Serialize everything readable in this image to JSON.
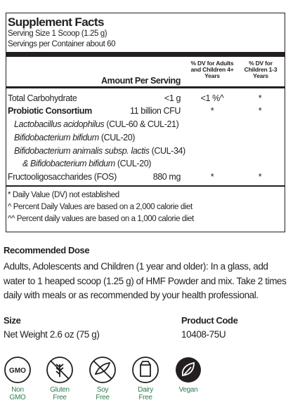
{
  "supplement_facts": {
    "title": "Supplement Facts",
    "serving_size": "Serving Size 1 Scoop (1.25 g)",
    "servings_per_container": "Servings per Container about 60",
    "header": {
      "amount": "Amount Per Serving",
      "dv_adults": "% DV for Adults and Children 4+ Years",
      "dv_children": "% DV for Children 1-3 Years"
    },
    "rows": [
      {
        "name": "Total Carbohydrate",
        "amount": "<1 g",
        "dv_adults": "<1 %^",
        "dv_children": "*"
      },
      {
        "name": "Probiotic Consortium",
        "amount": "11 billion CFU",
        "dv_adults": "*",
        "dv_children": "*"
      },
      {
        "italic": "Lactobacillus acidophilus",
        "plain": "(CUL-60 & CUL-21)"
      },
      {
        "italic": "Bifidobacterium bifidum",
        "plain": "(CUL-20)"
      },
      {
        "italic": "Bifidobacterium animalis subsp. lactis",
        "plain": "(CUL-34)"
      },
      {
        "italic": "& Bifidobacterium bifidum",
        "plain": "(CUL-20)"
      },
      {
        "name": "Fructooligosaccharides (FOS)",
        "amount": "880 mg",
        "dv_adults": "*",
        "dv_children": "*"
      }
    ],
    "footnotes": [
      "* Daily Value (DV) not established",
      "^ Percent Daily Values are based on a 2,000 calorie diet",
      "^^ Percent daily values are based on a 1,000 calorie diet"
    ]
  },
  "recommended_dose": {
    "heading": "Recommended Dose",
    "text": "Adults, Adolescents and Children (1 year and older): In a glass, add water to 1 heaped scoop (1.25 g) of HMF Powder and mix. Take 2 times daily with meals or as recommended by your health professional."
  },
  "size": {
    "heading": "Size",
    "value": "Net Weight 2.6 oz (75 g)"
  },
  "product_code": {
    "heading": "Product Code",
    "value": "10408-75U"
  },
  "badges": {
    "gmo_icon": "GMO",
    "labels": [
      [
        "Non",
        "GMO"
      ],
      [
        "Gluten",
        "Free"
      ],
      [
        "Soy",
        "Free"
      ],
      [
        "Dairy",
        "Free"
      ],
      [
        "Vegan"
      ]
    ]
  }
}
